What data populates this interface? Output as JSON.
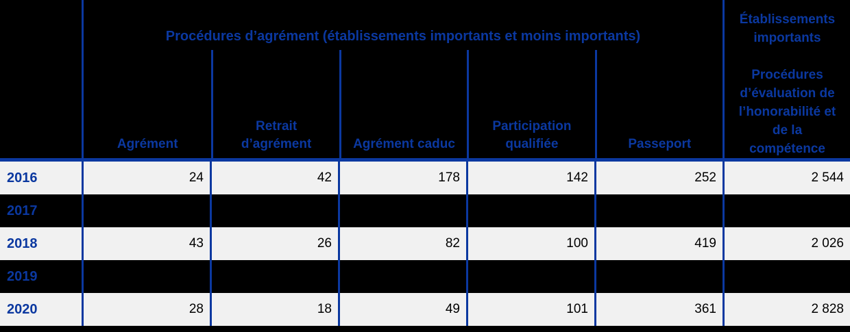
{
  "colors": {
    "background": "#000000",
    "row_light": "#F1F1F1",
    "row_redacted": "#000000",
    "accent_blue": "#0B38A0",
    "value_text": "#000000"
  },
  "table": {
    "header": {
      "group_title": "Procédures d’agrément (établissements importants et moins importants)",
      "columns": [
        "Agrément",
        "Retrait\nd’agrément",
        "Agrément caduc",
        "Participation\nqualifiée",
        "Passeport"
      ],
      "right_column_title": "Établissements\nimportants\n\nProcédures\nd’évaluation de\nl’honorabilité et\nde la\ncompétence"
    },
    "rows": [
      {
        "year": "2016",
        "redacted": false,
        "values": [
          "24",
          "42",
          "178",
          "142",
          "252",
          "2 544"
        ]
      },
      {
        "year": "2017",
        "redacted": true,
        "values": [
          "",
          "",
          "",
          "",
          "",
          ""
        ]
      },
      {
        "year": "2018",
        "redacted": false,
        "values": [
          "43",
          "26",
          "82",
          "100",
          "419",
          "2 026"
        ]
      },
      {
        "year": "2019",
        "redacted": true,
        "values": [
          "",
          "",
          "",
          "",
          "",
          ""
        ]
      },
      {
        "year": "2020",
        "redacted": false,
        "values": [
          "28",
          "18",
          "49",
          "101",
          "361",
          "2 828"
        ]
      }
    ]
  }
}
